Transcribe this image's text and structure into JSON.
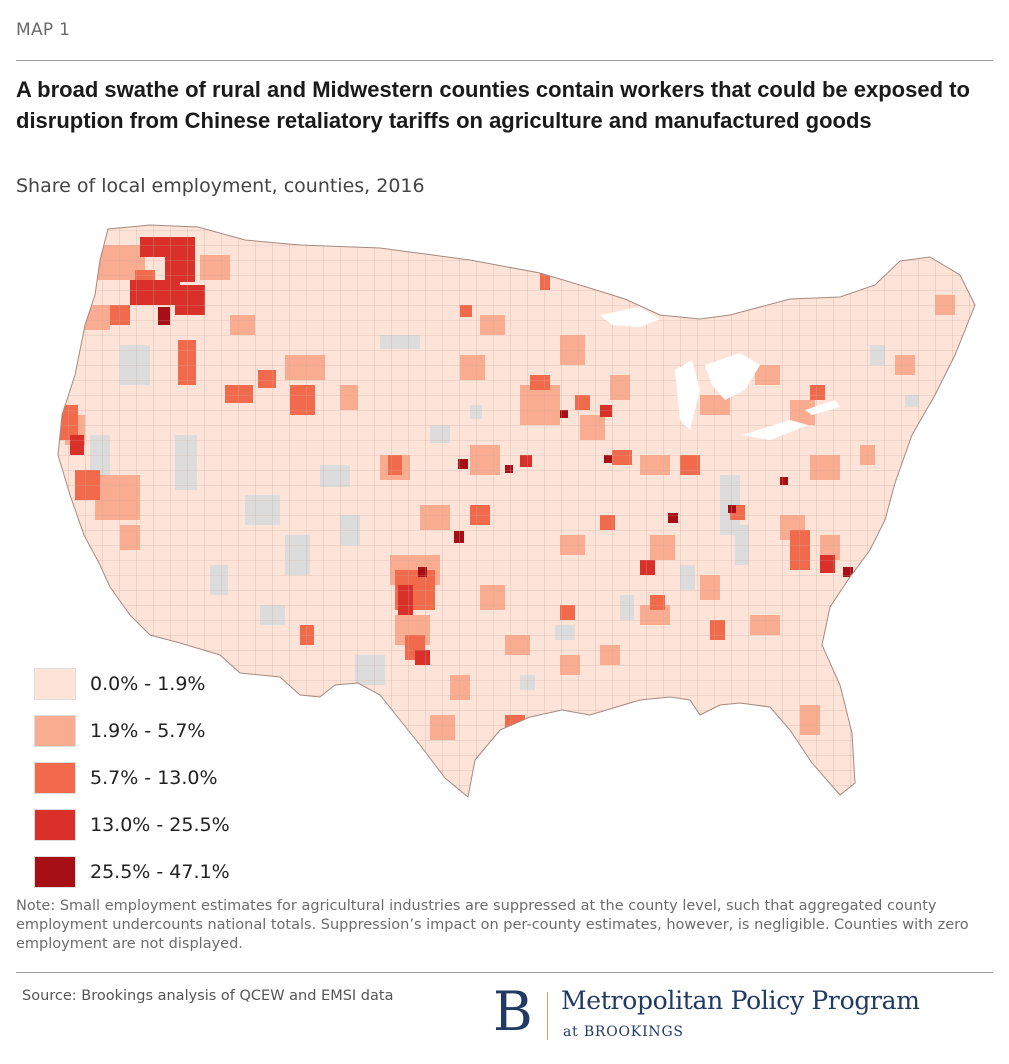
{
  "header": {
    "map_label": "MAP 1",
    "title": "A broad swathe of rural and Midwestern counties contain workers that could be exposed to disruption from Chinese retaliatory tariffs on agriculture and manufactured goods",
    "subtitle": "Share of local employment, counties, 2016"
  },
  "legend": {
    "items": [
      {
        "label": "0.0% - 1.9%",
        "color": "#fde3d8"
      },
      {
        "label": "1.9% - 5.7%",
        "color": "#f9ac8f"
      },
      {
        "label": "5.7% - 13.0%",
        "color": "#f26a4c"
      },
      {
        "label": "13.0% - 25.5%",
        "color": "#d9302a"
      },
      {
        "label": "25.5% - 47.1%",
        "color": "#a50f15"
      }
    ]
  },
  "map": {
    "no_data_color": "#dcdcdc",
    "border_color": "#b59a90"
  },
  "footer": {
    "note": "Note: Small employment estimates for agricultural industries are suppressed at the county level, such that aggregated county employment undercounts national totals. Suppression’s impact on per-county estimates, however, is negligible. Counties with zero employment are not displayed.",
    "source": "Source: Brookings analysis of QCEW and EMSI data",
    "brand_letter": "B",
    "brand_name": "Metropolitan Policy Program",
    "brand_sub": "at BROOKINGS"
  }
}
